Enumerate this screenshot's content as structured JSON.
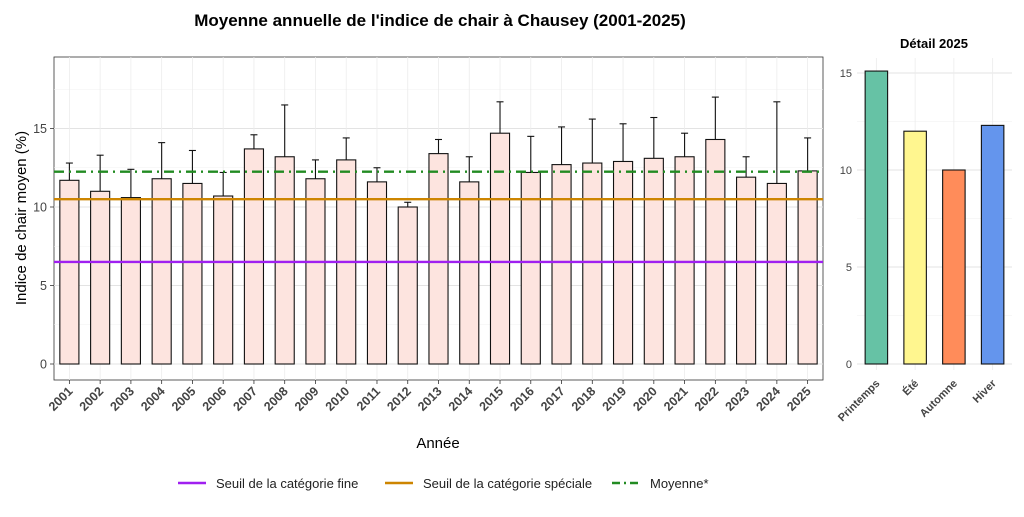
{
  "chart_data": [
    {
      "type": "bar",
      "title": "Moyenne annuelle de l'indice de chair à Chausey (2001-2025)",
      "xlabel": "Année",
      "ylabel": "Indice de chair moyen (%)",
      "ylim": [
        0,
        19.5
      ],
      "yticks": [
        0,
        5,
        10,
        15
      ],
      "grid": true,
      "categories": [
        "2001",
        "2002",
        "2003",
        "2004",
        "2005",
        "2006",
        "2007",
        "2008",
        "2009",
        "2010",
        "2011",
        "2012",
        "2013",
        "2014",
        "2015",
        "2016",
        "2017",
        "2018",
        "2019",
        "2020",
        "2021",
        "2022",
        "2023",
        "2024",
        "2025"
      ],
      "series": [
        {
          "values": [
            11.7,
            11.0,
            10.6,
            11.8,
            11.5,
            10.7,
            13.7,
            13.2,
            11.8,
            13.0,
            11.6,
            10.0,
            13.4,
            11.6,
            14.7,
            12.2,
            12.7,
            12.8,
            12.9,
            13.1,
            13.2,
            14.3,
            11.9,
            11.5,
            12.3
          ],
          "error_upper": [
            12.8,
            13.3,
            12.4,
            14.1,
            13.6,
            12.2,
            14.6,
            16.5,
            13.0,
            14.4,
            12.5,
            10.3,
            14.3,
            13.2,
            16.7,
            14.5,
            15.1,
            15.6,
            15.3,
            15.7,
            14.7,
            17.0,
            13.2,
            16.7,
            14.4
          ],
          "color": "#fde4df"
        }
      ],
      "reference_lines": [
        {
          "name": "Seuil de la catégorie fine",
          "value": 6.5,
          "color": "#a020f0",
          "style": "solid"
        },
        {
          "name": "Seuil de la catégorie spéciale",
          "value": 10.5,
          "color": "#cd8500",
          "style": "solid"
        },
        {
          "name": "Moyenne*",
          "value": 12.25,
          "color": "#228b22",
          "style": "dashdot"
        }
      ],
      "legend_position": "bottom"
    },
    {
      "type": "bar",
      "title": "Détail 2025",
      "ylim": [
        0,
        15.5
      ],
      "yticks": [
        0,
        5,
        10,
        15
      ],
      "grid": true,
      "categories": [
        "Printemps",
        "Été",
        "Automne",
        "Hiver"
      ],
      "values": [
        15.1,
        12.0,
        10.0,
        12.3
      ],
      "colors": [
        "#66c2a5",
        "#fff68f",
        "#ff8c5a",
        "#6495ed"
      ]
    }
  ]
}
